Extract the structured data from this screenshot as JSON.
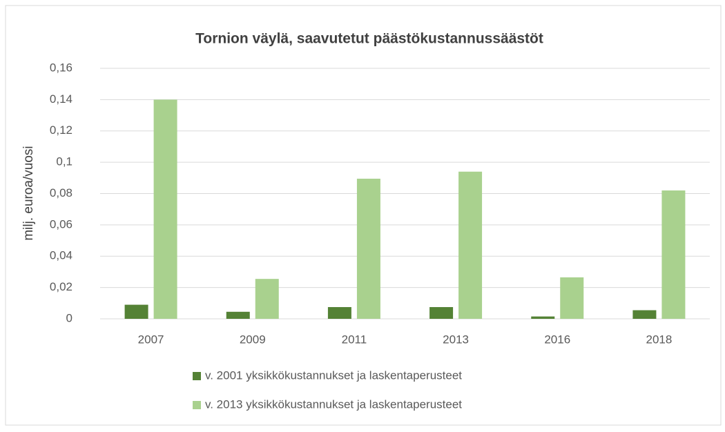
{
  "chart_data": {
    "type": "bar",
    "title": "Tornion väylä, saavutetut päästökustannussäästöt",
    "y_label": "milj. euroa/vuosi",
    "categories": [
      "2007",
      "2009",
      "2011",
      "2013",
      "2016",
      "2018"
    ],
    "series": [
      {
        "name": "v. 2001 yksikkökustannukset ja laskentaperusteet",
        "color": "#548235",
        "values": [
          0.009,
          0.0045,
          0.0075,
          0.0075,
          0.0015,
          0.0055
        ]
      },
      {
        "name": "v. 2013 yksikkökustannukset ja laskentaperusteet",
        "color": "#a9d18e",
        "values": [
          0.14,
          0.0255,
          0.0895,
          0.094,
          0.0265,
          0.082
        ]
      }
    ],
    "ylim": [
      0,
      0.16
    ],
    "yticks": [
      0,
      {
        "value": 0.02,
        "label": "0,02"
      },
      {
        "value": 0.04,
        "label": "0,04"
      },
      {
        "value": 0.06,
        "label": "0,06"
      },
      {
        "value": 0.08,
        "label": "0,08"
      },
      {
        "value": 0.1,
        "label": "0,1"
      },
      {
        "value": 0.12,
        "label": "0,12"
      },
      {
        "value": 0.14,
        "label": "0,14"
      },
      {
        "value": 0.16,
        "label": "0,16"
      }
    ],
    "grid": true
  }
}
